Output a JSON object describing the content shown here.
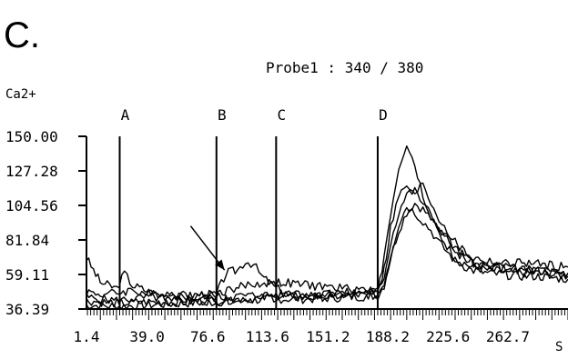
{
  "panel_label": "C.",
  "chart_data": {
    "type": "line",
    "title": "Probe1 : 340 / 380",
    "ylabel": "Ca2+",
    "xlabel": "S",
    "ylim": [
      36.39,
      150.0
    ],
    "xlim": [
      1.4,
      300
    ],
    "y_ticks": [
      "150.00",
      "127.28",
      "104.56",
      "81.84",
      "59.11",
      "36.39"
    ],
    "x_ticks": [
      "1.4",
      "39.0",
      "76.6",
      "113.6",
      "151.2",
      "188.2",
      "225.6",
      "262.7"
    ],
    "grid": false,
    "legend": "none",
    "markers": [
      {
        "label": "A",
        "x": 22
      },
      {
        "label": "B",
        "x": 82
      },
      {
        "label": "C",
        "x": 119
      },
      {
        "label": "D",
        "x": 182
      }
    ],
    "annotations": [
      {
        "type": "arrow",
        "from": [
          66,
          91
        ],
        "to": [
          87,
          62
        ]
      }
    ],
    "series": [
      {
        "x": [
          1.4,
          10,
          20,
          25,
          30,
          40,
          50,
          60,
          70,
          82,
          88,
          95,
          100,
          105,
          110,
          119,
          130,
          150,
          170,
          182,
          186,
          190,
          195,
          200,
          205,
          210,
          215,
          220,
          225,
          230,
          240,
          250,
          260,
          270,
          280,
          290,
          300
        ],
        "values": [
          70,
          54,
          50,
          60,
          52,
          48,
          45,
          44,
          46,
          46,
          60,
          62,
          68,
          66,
          58,
          50,
          46,
          46,
          46,
          46,
          72,
          100,
          130,
          146,
          132,
          112,
          98,
          90,
          84,
          74,
          67,
          64,
          65,
          62,
          62,
          61,
          60
        ]
      },
      {
        "x": [
          1.4,
          10,
          20,
          30,
          40,
          50,
          60,
          70,
          80,
          90,
          100,
          119,
          140,
          160,
          182,
          186,
          190,
          195,
          200,
          205,
          210,
          215,
          220,
          225,
          230,
          240,
          250,
          260,
          270,
          280,
          290,
          300
        ],
        "values": [
          48,
          46,
          47,
          49,
          46,
          47,
          46,
          45,
          46,
          49,
          52,
          54,
          52,
          50,
          49,
          62,
          90,
          110,
          118,
          110,
          120,
          106,
          96,
          88,
          80,
          70,
          68,
          66,
          67,
          66,
          65,
          64
        ]
      },
      {
        "x": [
          1.4,
          20,
          40,
          60,
          82,
          100,
          119,
          140,
          160,
          182,
          186,
          190,
          195,
          200,
          205,
          210,
          215,
          220,
          225,
          230,
          240,
          250,
          260,
          270,
          280,
          290,
          300
        ],
        "values": [
          44,
          42,
          44,
          43,
          44,
          45,
          46,
          46,
          47,
          48,
          58,
          80,
          100,
          112,
          114,
          106,
          98,
          90,
          82,
          76,
          68,
          64,
          63,
          62,
          62,
          61,
          60
        ]
      },
      {
        "x": [
          1.4,
          20,
          40,
          60,
          82,
          100,
          119,
          140,
          160,
          182,
          186,
          190,
          195,
          200,
          205,
          210,
          215,
          220,
          225,
          230,
          240,
          250,
          260,
          270,
          280,
          290,
          300
        ],
        "values": [
          42,
          40,
          41,
          41,
          42,
          43,
          44,
          44,
          45,
          46,
          54,
          72,
          92,
          104,
          100,
          94,
          88,
          80,
          74,
          68,
          62,
          60,
          59,
          58,
          58,
          57,
          56
        ]
      },
      {
        "x": [
          1.4,
          20,
          40,
          60,
          82,
          100,
          119,
          140,
          160,
          182,
          186,
          190,
          195,
          200,
          205,
          210,
          215,
          220,
          225,
          230,
          240,
          250,
          260,
          270,
          280,
          290,
          300
        ],
        "values": [
          39,
          38,
          39,
          40,
          41,
          42,
          43,
          43,
          44,
          45,
          52,
          70,
          88,
          100,
          106,
          102,
          96,
          86,
          78,
          70,
          64,
          62,
          61,
          60,
          60,
          59,
          58
        ]
      }
    ]
  }
}
